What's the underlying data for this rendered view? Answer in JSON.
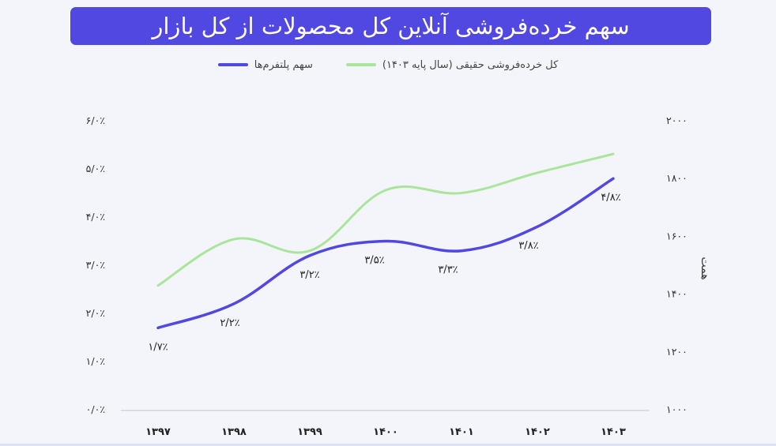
{
  "title": "سهم خرده‌فروشی آنلاین کل محصولات از کل بازار",
  "colors": {
    "title_bg": "#5147e1",
    "share": "#5147e1",
    "retail": "#a9e59b",
    "axis": "#bfc3cc"
  },
  "chart_data": {
    "type": "line",
    "categories": [
      "۱۳۹۷",
      "۱۳۹۸",
      "۱۳۹۹",
      "۱۴۰۰",
      "۱۴۰۱",
      "۱۴۰۲",
      "۱۴۰۳"
    ],
    "x": [
      1397,
      1398,
      1399,
      1400,
      1401,
      1402,
      1403
    ],
    "series": [
      {
        "name": "سهم پلتفرم‌ها",
        "axis": "left",
        "values": [
          1.7,
          2.2,
          3.2,
          3.5,
          3.3,
          3.8,
          4.8
        ],
        "data_labels": [
          "۱/۷٪",
          "۲/۲٪",
          "۳/۲٪",
          "۳/۵٪",
          "۳/۳٪",
          "۳/۸٪",
          "۴/۸٪"
        ]
      },
      {
        "name": "کل خرده‌فروشی حقیقی (سال پایه ۱۴۰۳)",
        "axis": "right",
        "values": [
          1430,
          1590,
          1550,
          1760,
          1750,
          1820,
          1885
        ]
      }
    ],
    "y_left": {
      "lim": [
        0,
        6
      ],
      "ticks": [
        0,
        1,
        2,
        3,
        4,
        5,
        6
      ],
      "tick_labels": [
        "۰/۰٪",
        "۱/۰٪",
        "۲/۰٪",
        "۳/۰٪",
        "۴/۰٪",
        "۵/۰٪",
        "۶/۰٪"
      ]
    },
    "y_right": {
      "lim": [
        1000,
        2000
      ],
      "ticks": [
        1000,
        1200,
        1400,
        1600,
        1800,
        2000
      ],
      "tick_labels": [
        "۱۰۰۰",
        "۱۲۰۰",
        "۱۴۰۰",
        "۱۶۰۰",
        "۱۸۰۰",
        "۲۰۰۰"
      ],
      "label": "همت"
    },
    "grid": false,
    "legend_position": "top"
  }
}
